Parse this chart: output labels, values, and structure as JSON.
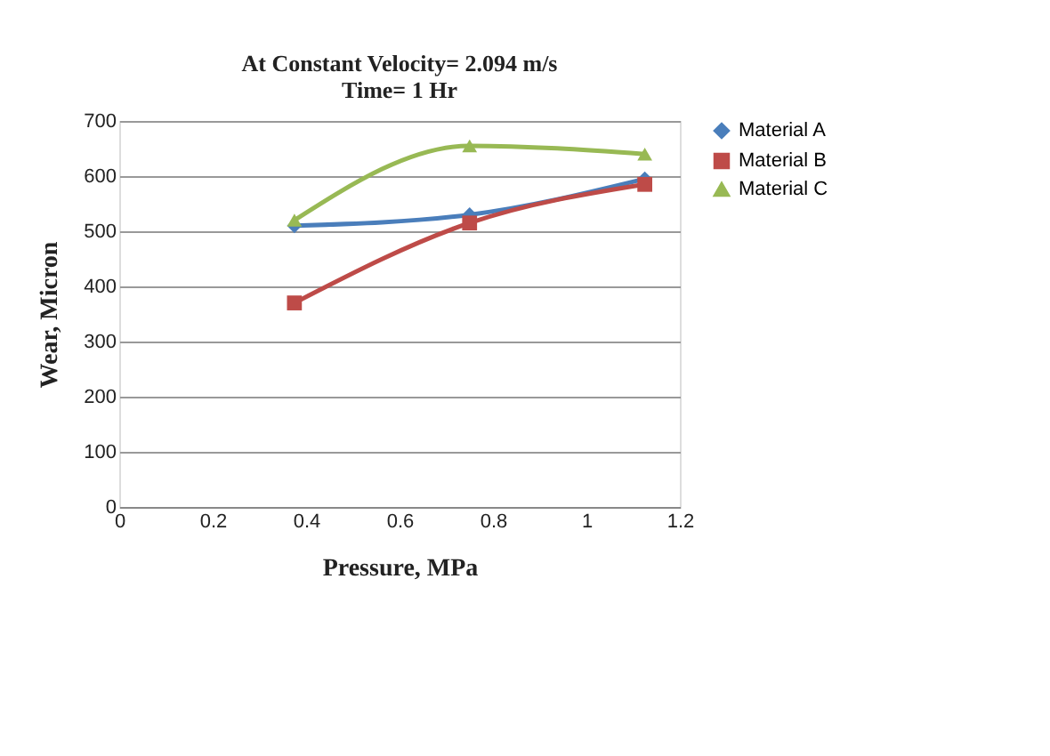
{
  "chart_data": {
    "type": "line",
    "title": [
      "At Constant Velocity= 2.094 m/s",
      "Time= 1 Hr"
    ],
    "xlabel": "Pressure, MPa",
    "ylabel": "Wear, Micron",
    "x": [
      0.375,
      0.75,
      1.125
    ],
    "series": [
      {
        "name": "Material A",
        "color": "#4a7ebb",
        "marker": "diamond",
        "values": [
          510,
          530,
          595
        ]
      },
      {
        "name": "Material B",
        "color": "#be4b48",
        "marker": "square",
        "values": [
          370,
          515,
          585
        ]
      },
      {
        "name": "Material C",
        "color": "#98b954",
        "marker": "triangle",
        "values": [
          520,
          655,
          640
        ]
      }
    ],
    "xlim": [
      0,
      1.2
    ],
    "xticks": [
      {
        "value": 0,
        "label": "0"
      },
      0.2,
      0.4,
      0.6,
      0.8,
      {
        "value": 1,
        "label": "1"
      },
      1.2
    ],
    "ylim": [
      0,
      700
    ],
    "yticks": [
      0,
      100,
      200,
      300,
      400,
      500,
      600,
      700
    ],
    "grid": "y",
    "legend": "right",
    "line_style": "solid"
  }
}
